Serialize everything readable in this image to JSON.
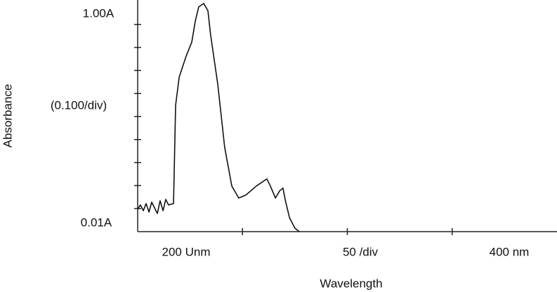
{
  "chart_data": {
    "type": "line",
    "y_label": "Absorbance",
    "x_label": "Wavelength",
    "y_axis_texts": [
      "1.00A",
      "(0.100/div)",
      "0.01A"
    ],
    "x_axis_texts": [
      "200 Unm",
      "50 /div",
      "400 nm"
    ],
    "xlim": [
      200,
      400
    ],
    "ylim": [
      0,
      1.0
    ],
    "xticks": [
      250,
      300,
      350
    ],
    "yticks": [
      0.1,
      0.2,
      0.3,
      0.4,
      0.5,
      0.6,
      0.7,
      0.8,
      0.9
    ],
    "x": [
      200.0,
      201.3,
      202.7,
      204.0,
      205.4,
      206.7,
      208.0,
      209.4,
      210.7,
      212.1,
      213.4,
      214.7,
      217.1,
      218.1,
      219.8,
      223.1,
      225.8,
      227.5,
      229.1,
      231.5,
      233.5,
      234.8,
      238.2,
      241.5,
      244.9,
      248.2,
      251.6,
      256.6,
      261.6,
      263.3,
      265.7,
      267.7,
      269.3,
      270.4,
      272.4,
      275.0,
      277.1
    ],
    "series": [
      {
        "color": "#111111",
        "values": [
          0.098,
          0.116,
          0.091,
          0.122,
          0.085,
          0.128,
          0.104,
          0.079,
          0.134,
          0.091,
          0.14,
          0.116,
          0.122,
          0.549,
          0.671,
          0.762,
          0.823,
          0.915,
          0.976,
          0.991,
          0.96,
          0.854,
          0.64,
          0.366,
          0.198,
          0.146,
          0.159,
          0.198,
          0.229,
          0.198,
          0.146,
          0.177,
          0.189,
          0.137,
          0.061,
          0.015,
          0
        ]
      }
    ]
  }
}
